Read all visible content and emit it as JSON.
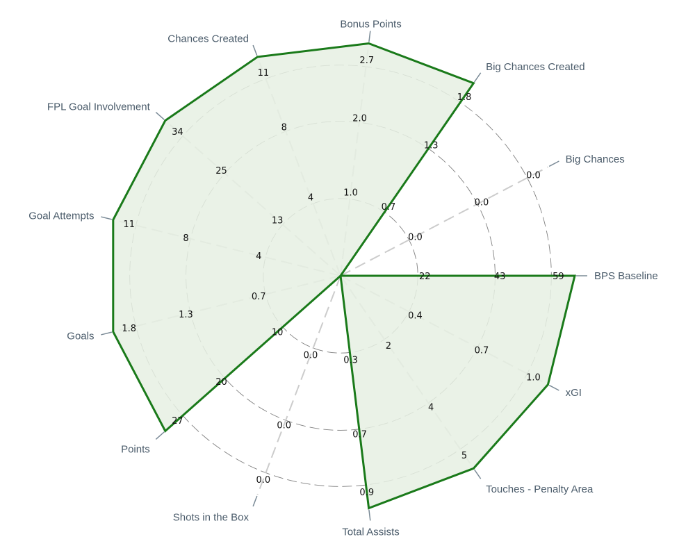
{
  "chart_data": {
    "type": "radar",
    "title": "",
    "grid": true,
    "fill_color": "#e6f0e3",
    "line_color": "#1a7a1a",
    "grid_color": "#555555",
    "spoke_color": "#cccccc",
    "label_color": "#4a5b6a",
    "axes": [
      {
        "name": "BPS Baseline",
        "value": 59,
        "ticks": [
          "22",
          "43",
          "59"
        ]
      },
      {
        "name": "xGI",
        "value": 1.0,
        "ticks": [
          "0.4",
          "0.7",
          "1.0"
        ]
      },
      {
        "name": "Touches - Penalty Area",
        "value": 5,
        "ticks": [
          "2",
          "4",
          "5"
        ]
      },
      {
        "name": "Total Assists",
        "value": 0.9,
        "ticks": [
          "0.3",
          "0.7",
          "0.9"
        ]
      },
      {
        "name": "Shots in the Box",
        "value": 0.0,
        "ticks": [
          "0.0",
          "0.0",
          "0.0"
        ]
      },
      {
        "name": "Points",
        "value": 27,
        "ticks": [
          "10",
          "20",
          "27"
        ]
      },
      {
        "name": "Goals",
        "value": 1.8,
        "ticks": [
          "0.7",
          "1.3",
          "1.8"
        ]
      },
      {
        "name": "Goal Attempts",
        "value": 11,
        "ticks": [
          "4",
          "8",
          "11"
        ]
      },
      {
        "name": "FPL Goal Involvement",
        "value": 34,
        "ticks": [
          "13",
          "25",
          "34"
        ]
      },
      {
        "name": "Chances Created",
        "value": 11,
        "ticks": [
          "4",
          "8",
          "11"
        ]
      },
      {
        "name": "Bonus Points",
        "value": 2.7,
        "ticks": [
          "1.0",
          "2.0",
          "2.7"
        ]
      },
      {
        "name": "Big Chances Created",
        "value": 1.8,
        "ticks": [
          "0.7",
          "1.3",
          "1.8"
        ]
      },
      {
        "name": "Big Chances",
        "value": 0.0,
        "ticks": [
          "0.0",
          "0.0",
          "0.0"
        ]
      }
    ]
  }
}
